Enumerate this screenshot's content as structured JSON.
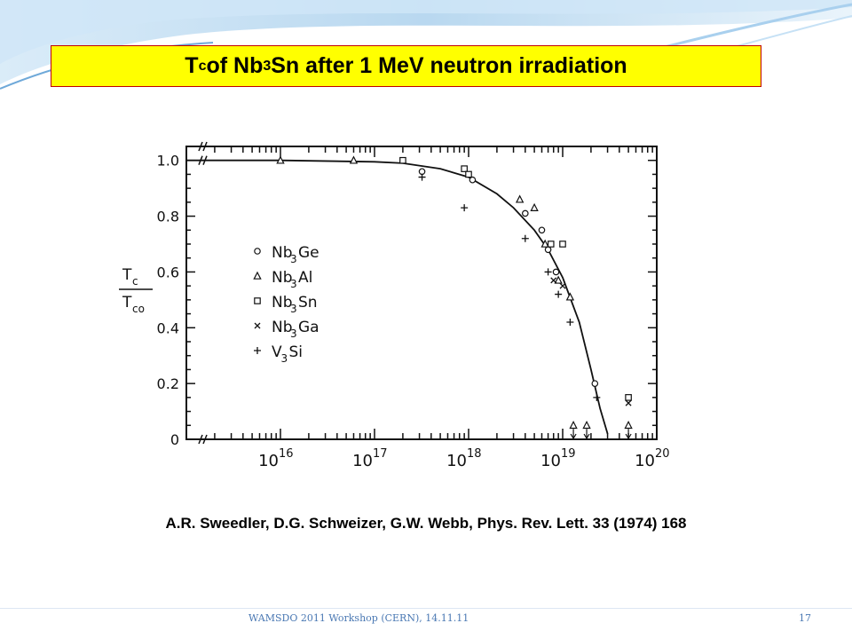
{
  "slide": {
    "title_pre": "T",
    "title_sub_c": "c",
    "title_mid": " of Nb",
    "title_sub_3": "3",
    "title_post": "Sn after 1 MeV neutron irradiation",
    "citation": "A.R. Sweedler, D.G. Schweizer, G.W. Webb, Phys. Rev. Lett. 33 (1974) 168",
    "footer": "WAMSDO 2011 Workshop (CERN), 14.11.11",
    "page_number": "17"
  },
  "colors": {
    "title_bg": "#ffff00",
    "title_border": "#c00000",
    "swoosh": "#7fb8e3",
    "footer_text": "#4a78b3"
  },
  "chart_data": {
    "type": "scatter",
    "x_scale": "log",
    "xlim": [
      "1e15",
      "1e20"
    ],
    "ylim": [
      0,
      1.05
    ],
    "ylabel_num": "T",
    "ylabel_num_sub": "c",
    "ylabel_den": "T",
    "ylabel_den_sub": "co",
    "x_ticks": [
      {
        "base": "10",
        "exp": "16",
        "value": 1e+16
      },
      {
        "base": "10",
        "exp": "17",
        "value": 1e+17
      },
      {
        "base": "10",
        "exp": "18",
        "value": 1e+18
      },
      {
        "base": "10",
        "exp": "19",
        "value": 1e+19
      },
      {
        "base": "10",
        "exp": "20",
        "value": 1e+20
      }
    ],
    "y_ticks": [
      "0",
      "0.2",
      "0.4",
      "0.6",
      "0.8",
      "1.0"
    ],
    "legend_position": "center-left",
    "series": [
      {
        "name_base": "Nb",
        "name_sub": "3",
        "name_rest": "Ge",
        "marker": "circle",
        "points": [
          [
            3.2e+17,
            0.96
          ],
          [
            1.1e+18,
            0.93
          ],
          [
            4e+18,
            0.81
          ],
          [
            6e+18,
            0.75
          ],
          [
            7e+18,
            0.68
          ],
          [
            8.5e+18,
            0.6
          ],
          [
            2.2e+19,
            0.2
          ]
        ]
      },
      {
        "name_base": "Nb",
        "name_sub": "3",
        "name_rest": "Al",
        "marker": "triangle",
        "points": [
          [
            1e+16,
            1.0
          ],
          [
            6e+16,
            1.0
          ],
          [
            3.5e+18,
            0.86
          ],
          [
            5e+18,
            0.83
          ],
          [
            6.5e+18,
            0.7
          ],
          [
            9e+18,
            0.57
          ],
          [
            1.2e+19,
            0.51
          ],
          [
            1.3e+19,
            0.05
          ],
          [
            1.8e+19,
            0.05
          ],
          [
            5e+19,
            0.05
          ]
        ]
      },
      {
        "name_base": "Nb",
        "name_sub": "3",
        "name_rest": "Sn",
        "marker": "square",
        "points": [
          [
            2e+17,
            1.0
          ],
          [
            9e+17,
            0.97
          ],
          [
            1e+18,
            0.95
          ],
          [
            7.5e+18,
            0.7
          ],
          [
            1e+19,
            0.7
          ],
          [
            5e+19,
            0.15
          ]
        ]
      },
      {
        "name_base": "Nb",
        "name_sub": "3",
        "name_rest": "Ga",
        "marker": "x",
        "points": [
          [
            8e+18,
            0.57
          ],
          [
            1e+19,
            0.55
          ],
          [
            5e+19,
            0.13
          ]
        ]
      },
      {
        "name_base": "V",
        "name_sub": "3",
        "name_rest": "Si",
        "marker": "plus",
        "points": [
          [
            3.2e+17,
            0.94
          ],
          [
            9e+17,
            0.83
          ],
          [
            4e+18,
            0.72
          ],
          [
            7e+18,
            0.6
          ],
          [
            9e+18,
            0.52
          ],
          [
            1.2e+19,
            0.42
          ],
          [
            2.3e+19,
            0.15
          ]
        ]
      }
    ],
    "curve": [
      [
        1000000000000000.0,
        1.0
      ],
      [
        1e+16,
        1.0
      ],
      [
        1e+17,
        0.995
      ],
      [
        2e+17,
        0.99
      ],
      [
        5e+17,
        0.97
      ],
      [
        1e+18,
        0.94
      ],
      [
        2e+18,
        0.88
      ],
      [
        3e+18,
        0.83
      ],
      [
        5e+18,
        0.75
      ],
      [
        7e+18,
        0.68
      ],
      [
        1e+19,
        0.58
      ],
      [
        1.5e+19,
        0.42
      ],
      [
        2e+19,
        0.25
      ],
      [
        2.5e+19,
        0.11
      ],
      [
        3e+19,
        0.02
      ]
    ]
  }
}
